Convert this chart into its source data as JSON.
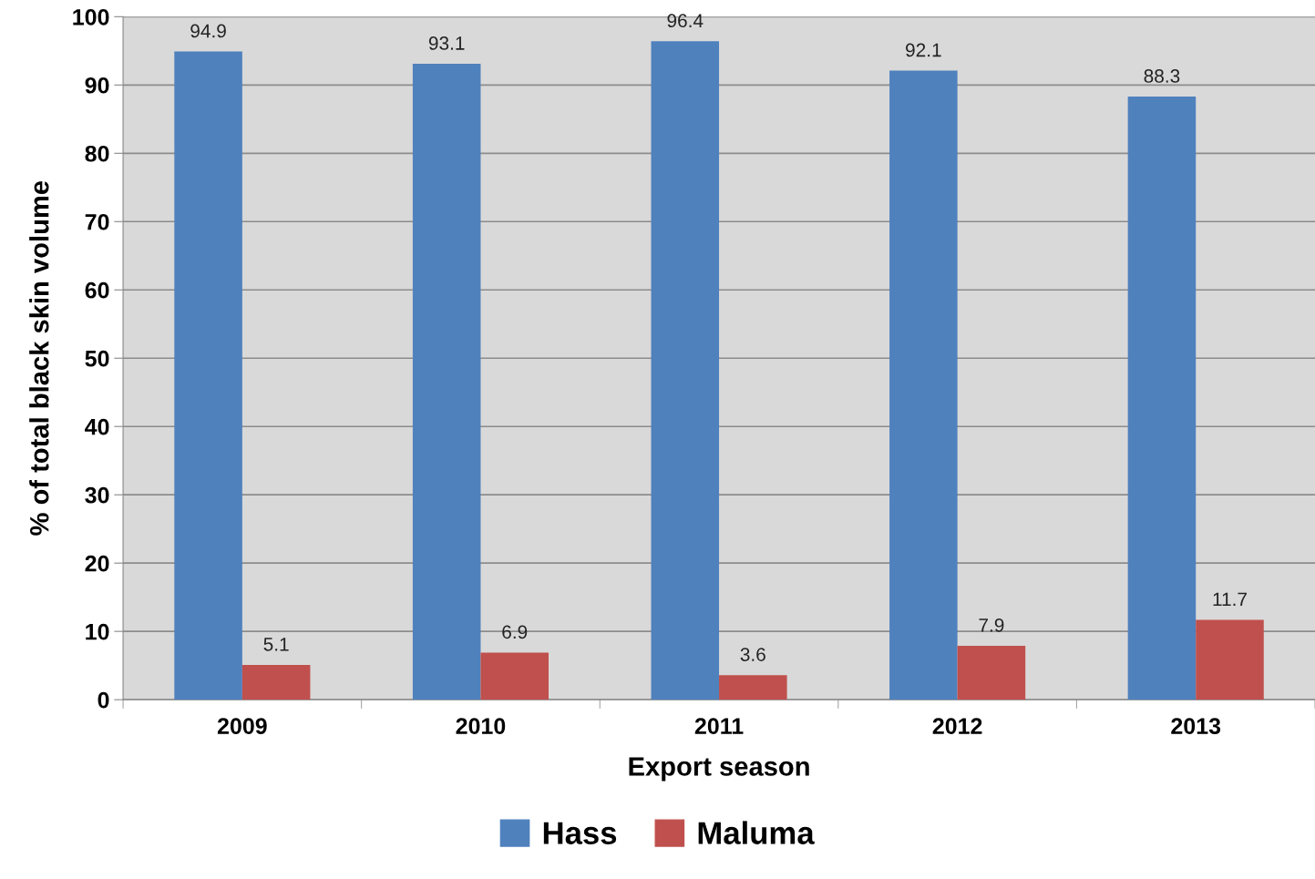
{
  "chart_data": {
    "type": "bar",
    "xlabel": "Export season",
    "ylabel": "% of total black skin volume",
    "categories": [
      "2009",
      "2010",
      "2011",
      "2012",
      "2013"
    ],
    "series": [
      {
        "name": "Hass",
        "color": "#4f81bd",
        "values": [
          94.9,
          93.1,
          96.4,
          92.1,
          88.3
        ]
      },
      {
        "name": "Maluma",
        "color": "#c0504d",
        "values": [
          5.1,
          6.9,
          3.6,
          7.9,
          11.7
        ]
      }
    ],
    "ylim": [
      0,
      100
    ],
    "yticks": [
      0,
      10,
      20,
      30,
      40,
      50,
      60,
      70,
      80,
      90,
      100
    ],
    "grid": "y",
    "legend": "bottom",
    "data_labels": true
  }
}
